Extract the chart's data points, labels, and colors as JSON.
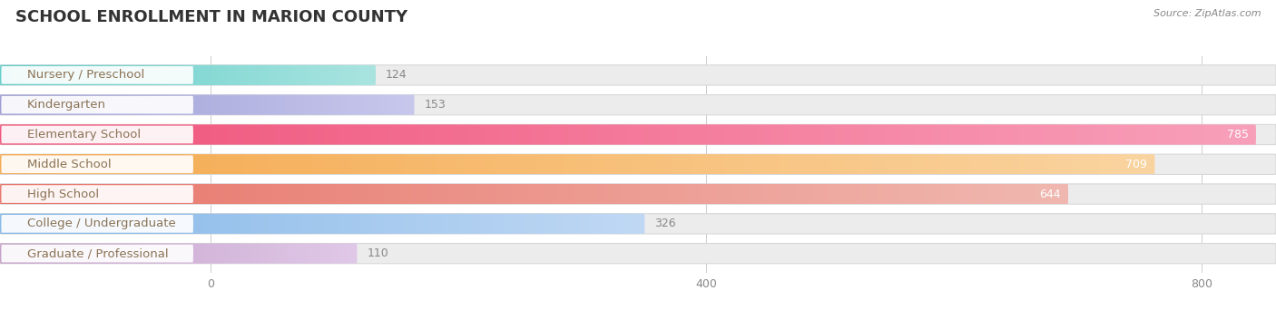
{
  "title": "SCHOOL ENROLLMENT IN MARION COUNTY",
  "source": "Source: ZipAtlas.com",
  "categories": [
    "Nursery / Preschool",
    "Kindergarten",
    "Elementary School",
    "Middle School",
    "High School",
    "College / Undergraduate",
    "Graduate / Professional"
  ],
  "values": [
    124,
    153,
    785,
    709,
    644,
    326,
    110
  ],
  "bar_colors": [
    "#5ecdc8",
    "#9b9bd5",
    "#f0527a",
    "#f5a94e",
    "#e8756a",
    "#85b8e8",
    "#c4a0c8"
  ],
  "bar_colors_light": [
    "#aae4e0",
    "#c8c8ed",
    "#f8a0ba",
    "#fad4a0",
    "#f0b8b0",
    "#c0d8f4",
    "#e0c8e8"
  ],
  "bar_bg_color": "#ececec",
  "bar_bg_border": "#d8d8d8",
  "label_text_color": "#8b7355",
  "value_color_inside": "#ffffff",
  "value_color_outside": "#888888",
  "xlim_min": -170,
  "xlim_max": 860,
  "data_max": 800,
  "xticks": [
    0,
    400,
    800
  ],
  "title_fontsize": 13,
  "label_fontsize": 9.5,
  "value_fontsize": 9,
  "bar_height": 0.68,
  "fig_width": 14.06,
  "fig_height": 3.42,
  "background_color": "#ffffff",
  "value_threshold": 400
}
